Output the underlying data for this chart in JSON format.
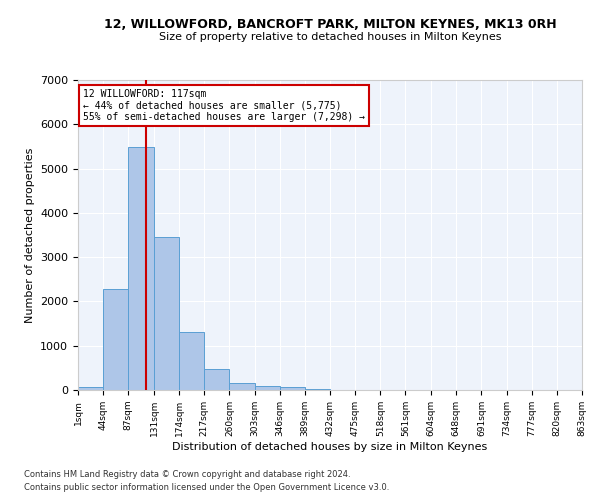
{
  "title_line1": "12, WILLOWFORD, BANCROFT PARK, MILTON KEYNES, MK13 0RH",
  "title_line2": "Size of property relative to detached houses in Milton Keynes",
  "xlabel": "Distribution of detached houses by size in Milton Keynes",
  "ylabel": "Number of detached properties",
  "bar_color": "#aec6e8",
  "bar_edge_color": "#5a9fd4",
  "background_color": "#eef3fb",
  "grid_color": "#ffffff",
  "vline_x": 117,
  "vline_color": "#cc0000",
  "annotation_line1": "12 WILLOWFORD: 117sqm",
  "annotation_line2": "← 44% of detached houses are smaller (5,775)",
  "annotation_line3": "55% of semi-detached houses are larger (7,298) →",
  "annotation_box_color": "#cc0000",
  "footer_line1": "Contains HM Land Registry data © Crown copyright and database right 2024.",
  "footer_line2": "Contains public sector information licensed under the Open Government Licence v3.0.",
  "bin_edges": [
    1,
    44,
    87,
    131,
    174,
    217,
    260,
    303,
    346,
    389,
    432,
    475,
    518,
    561,
    604,
    648,
    691,
    734,
    777,
    820,
    863
  ],
  "bar_heights": [
    75,
    2280,
    5490,
    3450,
    1320,
    470,
    160,
    95,
    60,
    20,
    0,
    0,
    0,
    0,
    0,
    0,
    0,
    0,
    0,
    0
  ],
  "ylim": [
    0,
    7000
  ],
  "yticks": [
    0,
    1000,
    2000,
    3000,
    4000,
    5000,
    6000,
    7000
  ]
}
